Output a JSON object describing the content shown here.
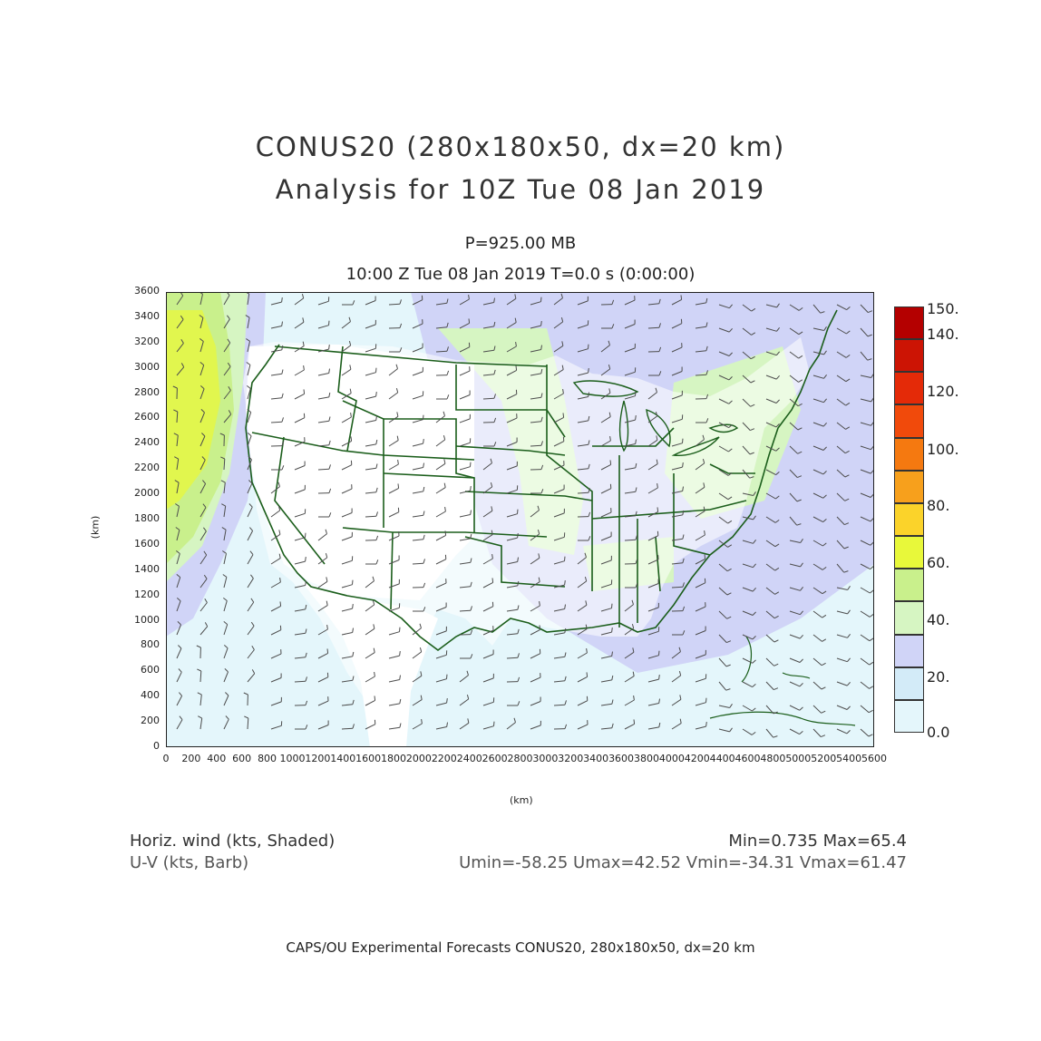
{
  "header": {
    "title_line1": "CONUS20 (280x180x50, dx=20 km)",
    "title_line2": "Analysis for 10Z Tue 08 Jan 2019",
    "level": "P=925.00 MB",
    "valid_time": "10:00 Z Tue 08 Jan 2019    T=0.0 s (0:00:00)"
  },
  "axes": {
    "x_unit": "(km)",
    "y_unit": "(km)",
    "x_ticks": [
      "0",
      "200",
      "400",
      "600",
      "800",
      "1000",
      "1200",
      "1400",
      "1600",
      "1800",
      "2000",
      "2200",
      "2400",
      "2600",
      "2800",
      "3000",
      "3200",
      "3400",
      "3600",
      "3800",
      "4000",
      "4200",
      "4400",
      "4600",
      "4800",
      "5000",
      "5200",
      "5400",
      "5600"
    ],
    "y_ticks": [
      "0",
      "200",
      "400",
      "600",
      "800",
      "1000",
      "1200",
      "1400",
      "1600",
      "1800",
      "2000",
      "2200",
      "2400",
      "2600",
      "2800",
      "3000",
      "3200",
      "3400",
      "3600"
    ],
    "x_range_km": [
      0,
      5600
    ],
    "y_range_km": [
      0,
      3600
    ]
  },
  "colorbar": {
    "labels": [
      "0.0",
      "20.",
      "40.",
      "60.",
      "80.",
      "100.",
      "120.",
      "140.",
      "150."
    ],
    "colors": [
      "#e4f6fb",
      "#d3ebf8",
      "#d0d4f7",
      "#d6f5c2",
      "#c9f08c",
      "#e8f83a",
      "#fbd32a",
      "#f7a01c",
      "#f57910",
      "#f14a0b",
      "#e42a08",
      "#cc1404",
      "#b40000"
    ]
  },
  "legend": {
    "left_line1": "Horiz. wind (kts, Shaded)",
    "left_line2": "U-V (kts, Barb)",
    "right_line1": "Min=0.735  Max=65.4",
    "right_line2": "Umin=-58.25 Umax=42.52 Vmin=-34.31 Vmax=61.47"
  },
  "footer": "CAPS/OU Experimental Forecasts   CONUS20, 280x180x50, dx=20 km",
  "map": {
    "land_color": "#ffffff",
    "boundary_color": "#1b5e1b",
    "ocean_wind_color": "#e4f6fb"
  }
}
